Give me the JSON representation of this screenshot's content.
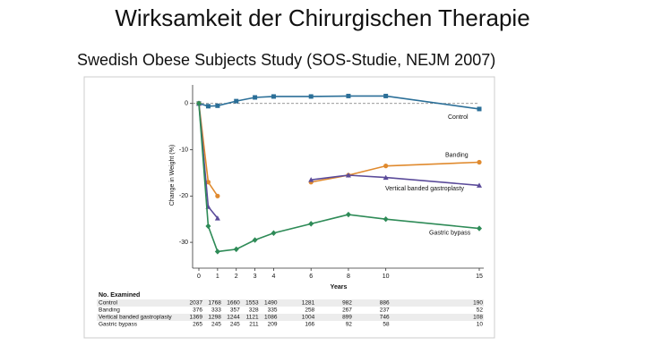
{
  "slide": {
    "title": "Wirksamkeit der Chirurgischen Therapie",
    "subtitle": "Swedish Obese Subjects Study (SOS-Studie, NEJM 2007)"
  },
  "chart_data": {
    "type": "line",
    "ylabel": "Change in Weight (%)",
    "xlabel": "Years",
    "x": [
      0,
      0.5,
      1,
      2,
      3,
      4,
      6,
      8,
      10,
      15
    ],
    "xlim": [
      0,
      15
    ],
    "xticks": [
      0,
      1,
      2,
      3,
      4,
      6,
      8,
      10,
      15
    ],
    "ylim": [
      -35,
      4
    ],
    "yticks": [
      0,
      -10,
      -20,
      -30
    ],
    "series": [
      {
        "name": "Control",
        "color": "#2b6f98",
        "marker": "square",
        "values": [
          0,
          -0.6,
          -0.5,
          0.5,
          1.3,
          1.5,
          1.5,
          1.6,
          1.6,
          -1.2
        ]
      },
      {
        "name": "Banding",
        "color": "#e08a2e",
        "marker": "circle",
        "values": [
          0,
          -17,
          -20,
          null,
          null,
          null,
          -17,
          -15.5,
          -13.5,
          -12.7
        ]
      },
      {
        "name": "Vertical banded gastroplasty",
        "color": "#5b4b9a",
        "marker": "triangle",
        "values": [
          0,
          -22.3,
          -24.8,
          null,
          null,
          null,
          -16.5,
          -15.5,
          -16,
          -17.7
        ]
      },
      {
        "name": "Gastric bypass",
        "color": "#2e8b57",
        "marker": "diamond",
        "values": [
          0,
          -26.5,
          -32,
          -31.5,
          -29.5,
          -28,
          -26,
          -24,
          -25,
          -27
        ]
      }
    ]
  },
  "table": {
    "title": "No. Examined",
    "rows": [
      {
        "label": "Control",
        "counts": [
          2037,
          1768,
          1660,
          1553,
          1490,
          1281,
          982,
          886,
          190
        ]
      },
      {
        "label": "Banding",
        "counts": [
          376,
          333,
          357,
          328,
          335,
          258,
          267,
          237,
          52
        ]
      },
      {
        "label": "Vertical banded gastroplasty",
        "counts": [
          1369,
          1298,
          1244,
          1121,
          1086,
          1004,
          899,
          746,
          108
        ]
      },
      {
        "label": "Gastric bypass",
        "counts": [
          265,
          245,
          245,
          211,
          209,
          166,
          92,
          58,
          10
        ]
      }
    ]
  }
}
